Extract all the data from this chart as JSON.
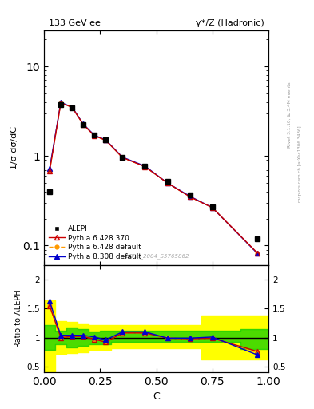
{
  "title_left": "133 GeV ee",
  "title_right": "γ*/Z (Hadronic)",
  "ylabel_main": "1/σ dσ/dC",
  "ylabel_ratio": "Ratio to ALEPH",
  "xlabel": "C",
  "watermark": "ALEPH_2004_S5765862",
  "right_label_top": "Rivet 3.1.10; ≥ 3.4M events",
  "right_label_bot": "mcplots.cern.ch [arXiv:1306.3436]",
  "aleph_x": [
    0.025,
    0.075,
    0.125,
    0.175,
    0.225,
    0.275,
    0.35,
    0.45,
    0.55,
    0.65,
    0.75,
    0.95
  ],
  "aleph_y": [
    0.4,
    3.75,
    3.45,
    2.25,
    1.72,
    1.52,
    0.97,
    0.77,
    0.52,
    0.37,
    0.27,
    0.118
  ],
  "py6_370_x": [
    0.025,
    0.075,
    0.125,
    0.175,
    0.225,
    0.275,
    0.35,
    0.45,
    0.55,
    0.65,
    0.75,
    0.95
  ],
  "py6_370_y": [
    0.68,
    3.9,
    3.5,
    2.25,
    1.68,
    1.5,
    0.96,
    0.76,
    0.5,
    0.35,
    0.265,
    0.083
  ],
  "py6_def_x": [
    0.025,
    0.075,
    0.125,
    0.175,
    0.225,
    0.275,
    0.35,
    0.45,
    0.55,
    0.65,
    0.75,
    0.95
  ],
  "py6_def_y": [
    0.68,
    3.9,
    3.5,
    2.25,
    1.68,
    1.5,
    0.96,
    0.76,
    0.5,
    0.35,
    0.265,
    0.082
  ],
  "py8_def_x": [
    0.025,
    0.075,
    0.125,
    0.175,
    0.225,
    0.275,
    0.35,
    0.45,
    0.55,
    0.65,
    0.75,
    0.95
  ],
  "py8_def_y": [
    0.72,
    3.95,
    3.52,
    2.27,
    1.7,
    1.51,
    0.97,
    0.77,
    0.5,
    0.355,
    0.265,
    0.082
  ],
  "ratio_x": [
    0.025,
    0.075,
    0.125,
    0.175,
    0.225,
    0.275,
    0.35,
    0.45,
    0.55,
    0.65,
    0.75,
    0.95
  ],
  "ratio_py6_370": [
    1.55,
    1.0,
    1.02,
    1.02,
    0.97,
    0.92,
    1.08,
    1.08,
    0.99,
    0.98,
    0.99,
    0.76
  ],
  "ratio_py6_def": [
    1.55,
    1.0,
    1.02,
    1.02,
    0.97,
    0.92,
    1.08,
    1.08,
    0.99,
    0.98,
    0.99,
    0.74
  ],
  "ratio_py8_def": [
    1.63,
    1.04,
    1.04,
    1.04,
    1.01,
    0.96,
    1.1,
    1.1,
    0.99,
    0.99,
    1.01,
    0.7
  ],
  "band_x_edges": [
    0.0,
    0.05,
    0.1,
    0.15,
    0.2,
    0.25,
    0.3,
    0.4,
    0.5,
    0.6,
    0.7,
    0.875,
    1.0
  ],
  "band_green_lo": [
    0.78,
    0.88,
    0.83,
    0.86,
    0.89,
    0.88,
    0.92,
    0.92,
    0.92,
    0.92,
    0.92,
    0.8
  ],
  "band_green_hi": [
    1.22,
    1.12,
    1.17,
    1.14,
    1.11,
    1.12,
    1.12,
    1.12,
    1.12,
    1.12,
    1.12,
    1.14
  ],
  "band_yellow_lo": [
    0.35,
    0.72,
    0.73,
    0.75,
    0.78,
    0.78,
    0.82,
    0.82,
    0.82,
    0.82,
    0.62,
    0.62
  ],
  "band_yellow_hi": [
    1.65,
    1.28,
    1.27,
    1.25,
    1.22,
    1.22,
    1.22,
    1.22,
    1.22,
    1.22,
    1.38,
    1.38
  ],
  "color_aleph": "#000000",
  "color_py6_370": "#cc0000",
  "color_py6_def": "#ff9900",
  "color_py8_def": "#0000cc",
  "color_green": "#00cc00",
  "color_yellow": "#ffff00",
  "ylim_main": [
    0.06,
    25
  ],
  "ylim_ratio": [
    0.4,
    2.25
  ],
  "xlim": [
    0.0,
    1.0
  ]
}
